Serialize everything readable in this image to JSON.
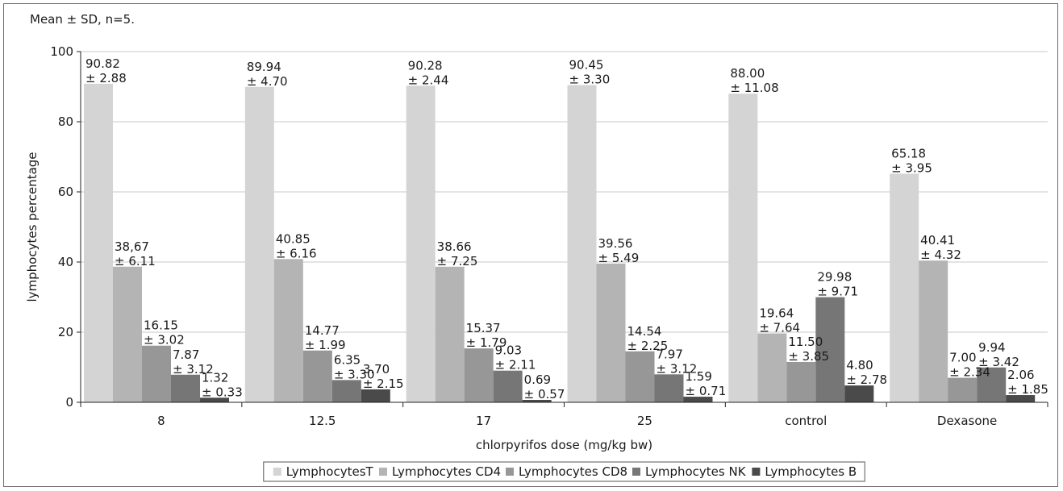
{
  "chart_data": {
    "type": "bar",
    "note": "Mean ± SD, n=5.",
    "xlabel": "chlorpyrifos dose (mg/kg bw)",
    "ylabel": "lymphocytes percentage",
    "ylim": [
      0,
      100
    ],
    "yticks": [
      0,
      20,
      40,
      60,
      80,
      100
    ],
    "grid": true,
    "legend_position": "bottom",
    "categories": [
      "8",
      "12.5",
      "17",
      "25",
      "control",
      "Dexasone"
    ],
    "series": [
      {
        "name": "LymphocytesT",
        "color": "#d4d4d4",
        "values": [
          90.82,
          89.94,
          90.28,
          90.45,
          88.0,
          65.18
        ],
        "labels": [
          [
            "90.82",
            "± 2.88"
          ],
          [
            "89.94",
            "± 4.70"
          ],
          [
            "90.28",
            "± 2.44"
          ],
          [
            "90.45",
            "± 3.30"
          ],
          [
            "88.00",
            "± 11.08"
          ],
          [
            "65.18",
            "± 3.95"
          ]
        ]
      },
      {
        "name": "Lymphocytes CD4",
        "color": "#b4b4b4",
        "values": [
          38.67,
          40.85,
          38.66,
          39.56,
          19.64,
          40.41
        ],
        "labels": [
          [
            "38,67",
            "± 6.11"
          ],
          [
            "40.85",
            "± 6.16"
          ],
          [
            "38.66",
            "± 7.25"
          ],
          [
            "39.56",
            "± 5.49"
          ],
          [
            "19.64",
            "± 7.64"
          ],
          [
            "40.41",
            "± 4.32"
          ]
        ]
      },
      {
        "name": "Lymphocytes CD8",
        "color": "#979797",
        "values": [
          16.15,
          14.77,
          15.37,
          14.54,
          11.5,
          7.0
        ],
        "labels": [
          [
            "16.15",
            "± 3.02"
          ],
          [
            "14.77",
            "± 1.99"
          ],
          [
            "15.37",
            "± 1.79"
          ],
          [
            "14.54",
            "± 2.25"
          ],
          [
            "11.50",
            "± 3.85"
          ],
          [
            "7.00",
            "± 2.34"
          ]
        ]
      },
      {
        "name": "Lymphocytes NK",
        "color": "#767676",
        "values": [
          7.87,
          6.35,
          9.03,
          7.97,
          29.98,
          9.94
        ],
        "labels": [
          [
            "7.87",
            "± 3.12"
          ],
          [
            "6.35",
            "± 3.30"
          ],
          [
            "9.03",
            "± 2.11"
          ],
          [
            "7.97",
            "± 3.12"
          ],
          [
            "29.98",
            "± 9.71"
          ],
          [
            "9.94",
            "± 3.42"
          ]
        ]
      },
      {
        "name": "Lymphocytes B",
        "color": "#4a4a4a",
        "values": [
          1.32,
          3.7,
          0.69,
          1.59,
          4.8,
          2.06
        ],
        "labels": [
          [
            "1.32",
            "± 0.33"
          ],
          [
            "3.70",
            "± 2.15"
          ],
          [
            "0.69",
            "± 0.57"
          ],
          [
            "1.59",
            "± 0.71"
          ],
          [
            "4.80",
            "± 2.78"
          ],
          [
            "2.06",
            "± 1.85"
          ]
        ]
      }
    ]
  }
}
